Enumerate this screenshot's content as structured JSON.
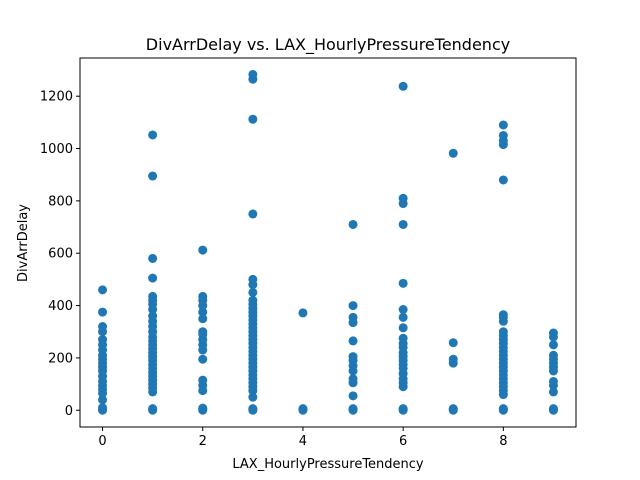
{
  "chart_data": {
    "type": "scatter",
    "title": "DivArrDelay vs. LAX_HourlyPressureTendency",
    "xlabel": "LAX_HourlyPressureTendency",
    "ylabel": "DivArrDelay",
    "xlim": [
      -0.45,
      9.45
    ],
    "ylim": [
      -64,
      1346
    ],
    "xticks": [
      0,
      2,
      4,
      6,
      8
    ],
    "yticks": [
      0,
      200,
      400,
      600,
      800,
      1000,
      1200
    ],
    "grid": false,
    "marker_color": "#1f77b4",
    "series": [
      {
        "points": [
          [
            0,
            0
          ],
          [
            0,
            5
          ],
          [
            0,
            10
          ],
          [
            0,
            40
          ],
          [
            0,
            65
          ],
          [
            0,
            80
          ],
          [
            0,
            95
          ],
          [
            0,
            110
          ],
          [
            0,
            130
          ],
          [
            0,
            150
          ],
          [
            0,
            165
          ],
          [
            0,
            180
          ],
          [
            0,
            195
          ],
          [
            0,
            210
          ],
          [
            0,
            230
          ],
          [
            0,
            250
          ],
          [
            0,
            270
          ],
          [
            0,
            300
          ],
          [
            0,
            320
          ],
          [
            0,
            375
          ],
          [
            0,
            460
          ],
          [
            1,
            0
          ],
          [
            1,
            3
          ],
          [
            1,
            6
          ],
          [
            1,
            70
          ],
          [
            1,
            85
          ],
          [
            1,
            100
          ],
          [
            1,
            115
          ],
          [
            1,
            130
          ],
          [
            1,
            145
          ],
          [
            1,
            160
          ],
          [
            1,
            175
          ],
          [
            1,
            190
          ],
          [
            1,
            205
          ],
          [
            1,
            220
          ],
          [
            1,
            235
          ],
          [
            1,
            250
          ],
          [
            1,
            265
          ],
          [
            1,
            280
          ],
          [
            1,
            300
          ],
          [
            1,
            320
          ],
          [
            1,
            340
          ],
          [
            1,
            360
          ],
          [
            1,
            385
          ],
          [
            1,
            405
          ],
          [
            1,
            420
          ],
          [
            1,
            435
          ],
          [
            1,
            505
          ],
          [
            1,
            580
          ],
          [
            1,
            895
          ],
          [
            1,
            1052
          ],
          [
            2,
            0
          ],
          [
            2,
            4
          ],
          [
            2,
            8
          ],
          [
            2,
            75
          ],
          [
            2,
            95
          ],
          [
            2,
            115
          ],
          [
            2,
            195
          ],
          [
            2,
            230
          ],
          [
            2,
            250
          ],
          [
            2,
            270
          ],
          [
            2,
            290
          ],
          [
            2,
            300
          ],
          [
            2,
            350
          ],
          [
            2,
            375
          ],
          [
            2,
            400
          ],
          [
            2,
            420
          ],
          [
            2,
            435
          ],
          [
            2,
            612
          ],
          [
            3,
            0
          ],
          [
            3,
            3
          ],
          [
            3,
            6
          ],
          [
            3,
            50
          ],
          [
            3,
            75
          ],
          [
            3,
            90
          ],
          [
            3,
            105
          ],
          [
            3,
            120
          ],
          [
            3,
            135
          ],
          [
            3,
            150
          ],
          [
            3,
            165
          ],
          [
            3,
            180
          ],
          [
            3,
            195
          ],
          [
            3,
            210
          ],
          [
            3,
            225
          ],
          [
            3,
            240
          ],
          [
            3,
            255
          ],
          [
            3,
            270
          ],
          [
            3,
            285
          ],
          [
            3,
            300
          ],
          [
            3,
            315
          ],
          [
            3,
            330
          ],
          [
            3,
            345
          ],
          [
            3,
            360
          ],
          [
            3,
            375
          ],
          [
            3,
            390
          ],
          [
            3,
            405
          ],
          [
            3,
            420
          ],
          [
            3,
            450
          ],
          [
            3,
            480
          ],
          [
            3,
            500
          ],
          [
            3,
            750
          ],
          [
            3,
            1112
          ],
          [
            3,
            1265
          ],
          [
            3,
            1283
          ],
          [
            4,
            0
          ],
          [
            4,
            3
          ],
          [
            4,
            6
          ],
          [
            4,
            372
          ],
          [
            5,
            0
          ],
          [
            5,
            3
          ],
          [
            5,
            6
          ],
          [
            5,
            55
          ],
          [
            5,
            105
          ],
          [
            5,
            120
          ],
          [
            5,
            150
          ],
          [
            5,
            170
          ],
          [
            5,
            190
          ],
          [
            5,
            205
          ],
          [
            5,
            265
          ],
          [
            5,
            335
          ],
          [
            5,
            355
          ],
          [
            5,
            400
          ],
          [
            5,
            710
          ],
          [
            6,
            0
          ],
          [
            6,
            3
          ],
          [
            6,
            6
          ],
          [
            6,
            90
          ],
          [
            6,
            105
          ],
          [
            6,
            120
          ],
          [
            6,
            140
          ],
          [
            6,
            160
          ],
          [
            6,
            175
          ],
          [
            6,
            190
          ],
          [
            6,
            205
          ],
          [
            6,
            220
          ],
          [
            6,
            240
          ],
          [
            6,
            255
          ],
          [
            6,
            275
          ],
          [
            6,
            315
          ],
          [
            6,
            355
          ],
          [
            6,
            385
          ],
          [
            6,
            485
          ],
          [
            6,
            710
          ],
          [
            6,
            790
          ],
          [
            6,
            810
          ],
          [
            6,
            1238
          ],
          [
            7,
            0
          ],
          [
            7,
            3
          ],
          [
            7,
            6
          ],
          [
            7,
            180
          ],
          [
            7,
            195
          ],
          [
            7,
            258
          ],
          [
            7,
            982
          ],
          [
            8,
            0
          ],
          [
            8,
            3
          ],
          [
            8,
            6
          ],
          [
            8,
            60
          ],
          [
            8,
            75
          ],
          [
            8,
            90
          ],
          [
            8,
            105
          ],
          [
            8,
            120
          ],
          [
            8,
            135
          ],
          [
            8,
            150
          ],
          [
            8,
            165
          ],
          [
            8,
            180
          ],
          [
            8,
            195
          ],
          [
            8,
            210
          ],
          [
            8,
            225
          ],
          [
            8,
            240
          ],
          [
            8,
            255
          ],
          [
            8,
            270
          ],
          [
            8,
            285
          ],
          [
            8,
            300
          ],
          [
            8,
            340
          ],
          [
            8,
            355
          ],
          [
            8,
            365
          ],
          [
            8,
            880
          ],
          [
            8,
            1015
          ],
          [
            8,
            1030
          ],
          [
            8,
            1050
          ],
          [
            8,
            1090
          ],
          [
            9,
            0
          ],
          [
            9,
            3
          ],
          [
            9,
            6
          ],
          [
            9,
            70
          ],
          [
            9,
            95
          ],
          [
            9,
            110
          ],
          [
            9,
            150
          ],
          [
            9,
            165
          ],
          [
            9,
            180
          ],
          [
            9,
            195
          ],
          [
            9,
            210
          ],
          [
            9,
            250
          ],
          [
            9,
            280
          ],
          [
            9,
            295
          ]
        ]
      }
    ]
  }
}
